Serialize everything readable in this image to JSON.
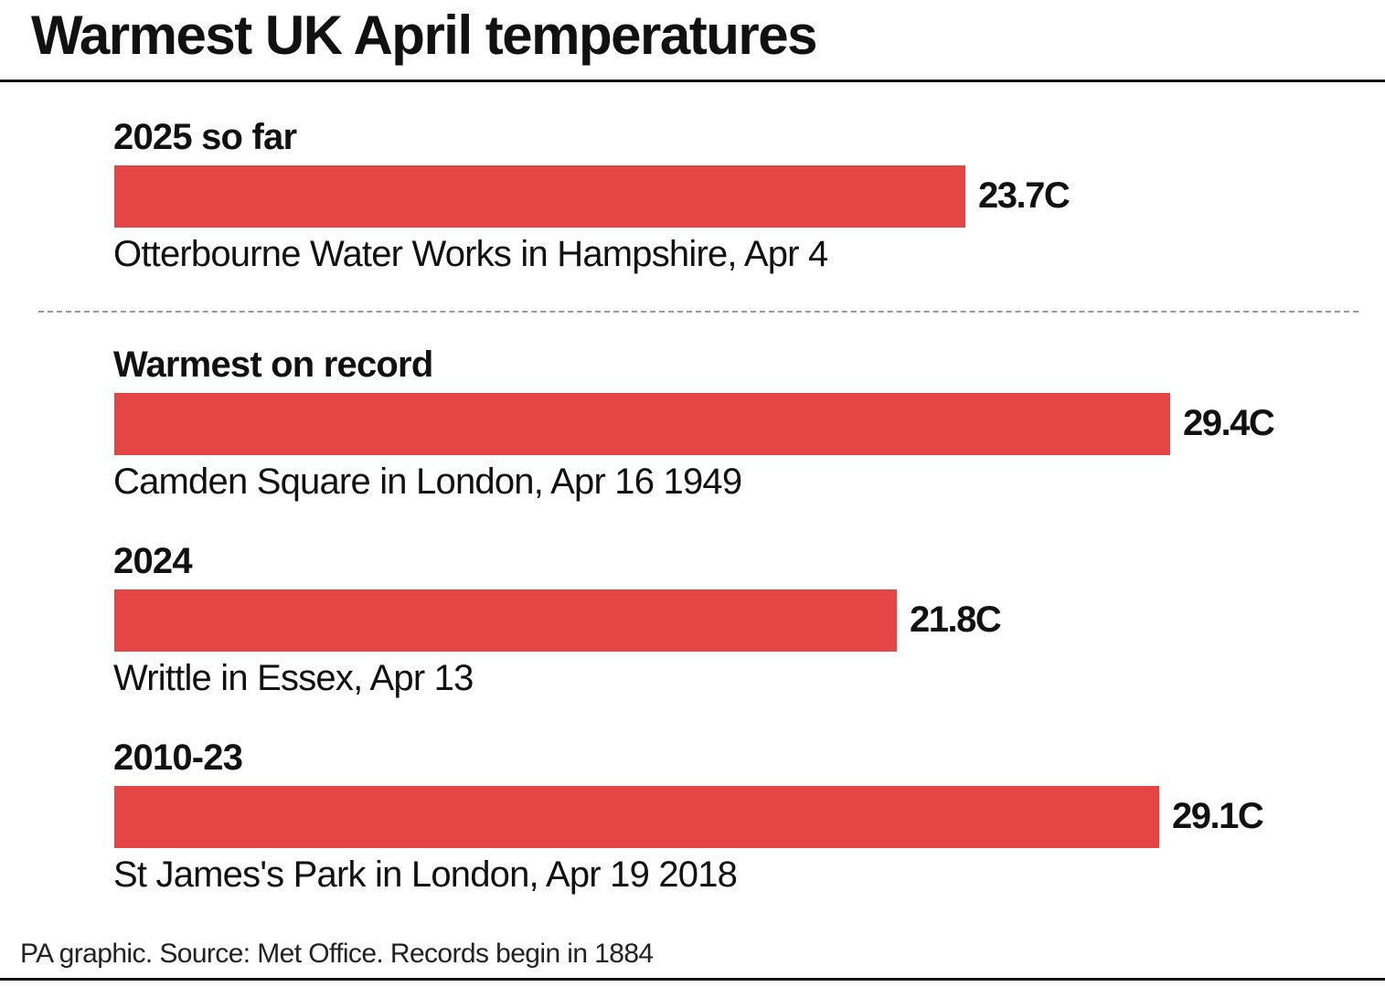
{
  "title": "Warmest UK April temperatures",
  "source": "PA graphic. Source: Met Office. Records begin in 1884",
  "colors": {
    "bar": "#e54645",
    "text": "#111111",
    "divider": "#9a9a9a"
  },
  "chart_data": {
    "type": "bar",
    "orientation": "horizontal",
    "title": "Warmest UK April temperatures",
    "xlabel": "",
    "ylabel": "",
    "unit": "C",
    "xlim": [
      0,
      29.4
    ],
    "grid": false,
    "categories": [
      "2025 so far",
      "Warmest on record",
      "2024",
      "2010-23"
    ],
    "values": [
      23.7,
      29.4,
      21.8,
      29.1
    ],
    "value_labels": [
      "23.7C",
      "29.4C",
      "21.8C",
      "29.1C"
    ],
    "locations": [
      "Otterbourne Water Works in Hampshire, Apr 4",
      "Camden Square in London, Apr 16 1949",
      "Writtle in Essex, Apr 13",
      "St James's Park in London, Apr 19 2018"
    ]
  }
}
